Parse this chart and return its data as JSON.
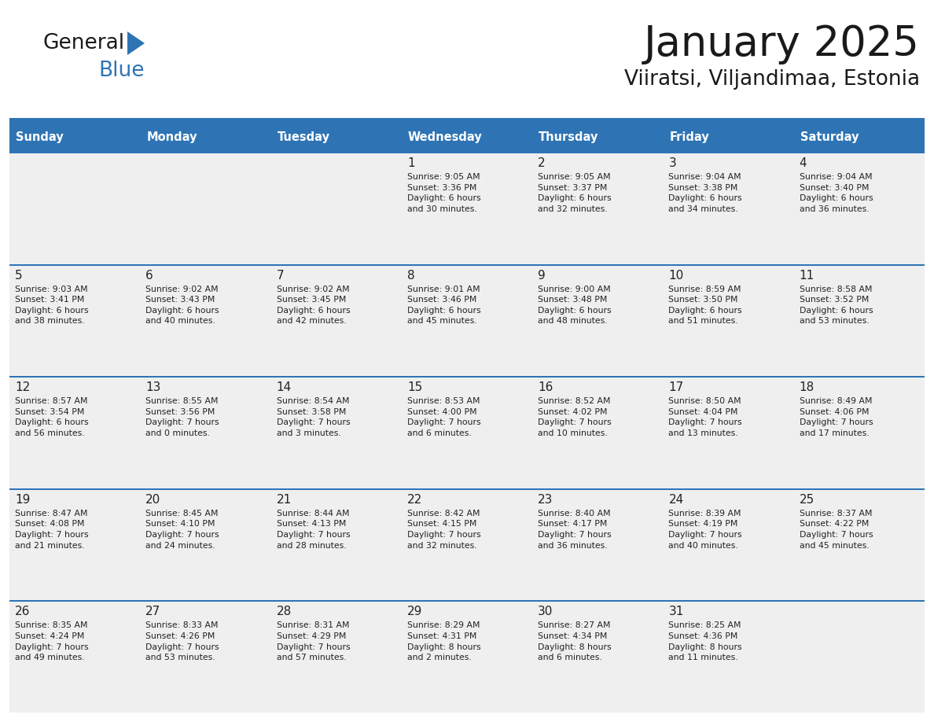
{
  "title": "January 2025",
  "subtitle": "Viiratsi, Viljandimaa, Estonia",
  "days_of_week": [
    "Sunday",
    "Monday",
    "Tuesday",
    "Wednesday",
    "Thursday",
    "Friday",
    "Saturday"
  ],
  "header_bg": "#2E74B5",
  "header_text": "#FFFFFF",
  "cell_bg_light": "#EFEFEF",
  "cell_bg_white": "#FFFFFF",
  "cell_text": "#222222",
  "day_num_color": "#222222",
  "line_color": "#2E74B5",
  "title_color": "#1A1A1A",
  "subtitle_color": "#1A1A1A",
  "logo_general_color": "#1A1A1A",
  "logo_blue_color": "#2E74B5",
  "calendar_data": [
    [
      "",
      "",
      "",
      "1\nSunrise: 9:05 AM\nSunset: 3:36 PM\nDaylight: 6 hours\nand 30 minutes.",
      "2\nSunrise: 9:05 AM\nSunset: 3:37 PM\nDaylight: 6 hours\nand 32 minutes.",
      "3\nSunrise: 9:04 AM\nSunset: 3:38 PM\nDaylight: 6 hours\nand 34 minutes.",
      "4\nSunrise: 9:04 AM\nSunset: 3:40 PM\nDaylight: 6 hours\nand 36 minutes."
    ],
    [
      "5\nSunrise: 9:03 AM\nSunset: 3:41 PM\nDaylight: 6 hours\nand 38 minutes.",
      "6\nSunrise: 9:02 AM\nSunset: 3:43 PM\nDaylight: 6 hours\nand 40 minutes.",
      "7\nSunrise: 9:02 AM\nSunset: 3:45 PM\nDaylight: 6 hours\nand 42 minutes.",
      "8\nSunrise: 9:01 AM\nSunset: 3:46 PM\nDaylight: 6 hours\nand 45 minutes.",
      "9\nSunrise: 9:00 AM\nSunset: 3:48 PM\nDaylight: 6 hours\nand 48 minutes.",
      "10\nSunrise: 8:59 AM\nSunset: 3:50 PM\nDaylight: 6 hours\nand 51 minutes.",
      "11\nSunrise: 8:58 AM\nSunset: 3:52 PM\nDaylight: 6 hours\nand 53 minutes."
    ],
    [
      "12\nSunrise: 8:57 AM\nSunset: 3:54 PM\nDaylight: 6 hours\nand 56 minutes.",
      "13\nSunrise: 8:55 AM\nSunset: 3:56 PM\nDaylight: 7 hours\nand 0 minutes.",
      "14\nSunrise: 8:54 AM\nSunset: 3:58 PM\nDaylight: 7 hours\nand 3 minutes.",
      "15\nSunrise: 8:53 AM\nSunset: 4:00 PM\nDaylight: 7 hours\nand 6 minutes.",
      "16\nSunrise: 8:52 AM\nSunset: 4:02 PM\nDaylight: 7 hours\nand 10 minutes.",
      "17\nSunrise: 8:50 AM\nSunset: 4:04 PM\nDaylight: 7 hours\nand 13 minutes.",
      "18\nSunrise: 8:49 AM\nSunset: 4:06 PM\nDaylight: 7 hours\nand 17 minutes."
    ],
    [
      "19\nSunrise: 8:47 AM\nSunset: 4:08 PM\nDaylight: 7 hours\nand 21 minutes.",
      "20\nSunrise: 8:45 AM\nSunset: 4:10 PM\nDaylight: 7 hours\nand 24 minutes.",
      "21\nSunrise: 8:44 AM\nSunset: 4:13 PM\nDaylight: 7 hours\nand 28 minutes.",
      "22\nSunrise: 8:42 AM\nSunset: 4:15 PM\nDaylight: 7 hours\nand 32 minutes.",
      "23\nSunrise: 8:40 AM\nSunset: 4:17 PM\nDaylight: 7 hours\nand 36 minutes.",
      "24\nSunrise: 8:39 AM\nSunset: 4:19 PM\nDaylight: 7 hours\nand 40 minutes.",
      "25\nSunrise: 8:37 AM\nSunset: 4:22 PM\nDaylight: 7 hours\nand 45 minutes."
    ],
    [
      "26\nSunrise: 8:35 AM\nSunset: 4:24 PM\nDaylight: 7 hours\nand 49 minutes.",
      "27\nSunrise: 8:33 AM\nSunset: 4:26 PM\nDaylight: 7 hours\nand 53 minutes.",
      "28\nSunrise: 8:31 AM\nSunset: 4:29 PM\nDaylight: 7 hours\nand 57 minutes.",
      "29\nSunrise: 8:29 AM\nSunset: 4:31 PM\nDaylight: 8 hours\nand 2 minutes.",
      "30\nSunrise: 8:27 AM\nSunset: 4:34 PM\nDaylight: 8 hours\nand 6 minutes.",
      "31\nSunrise: 8:25 AM\nSunset: 4:36 PM\nDaylight: 8 hours\nand 11 minutes.",
      ""
    ]
  ]
}
